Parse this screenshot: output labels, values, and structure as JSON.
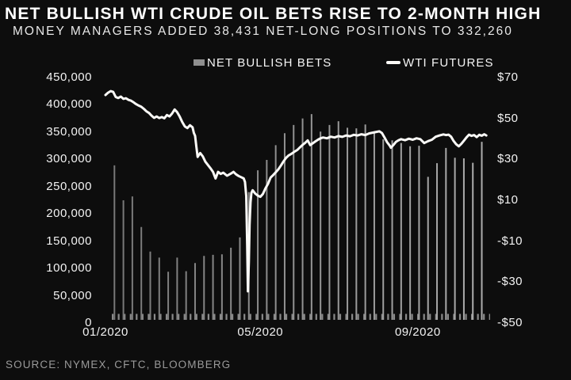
{
  "title": "NET BULLISH WTI CRUDE OIL BETS RISE TO 2-MONTH HIGH",
  "subtitle": "MONEY MANAGERS ADDED 38,431 NET-LONG POSITIONS TO 332,260",
  "source": "SOURCE: NYMEX, CFTC, BLOOMBERG",
  "key_stats": {
    "net_long_added": "38,431",
    "net_long_total": "332,260"
  },
  "legend": [
    {
      "label": "NET BULLISH BETS",
      "swatch": "bar",
      "color": "#8f8f8f"
    },
    {
      "label": "WTI FUTURES",
      "swatch": "line",
      "color": "#fbfaf7"
    }
  ],
  "colors": {
    "background": "#0d0d0d",
    "bar": "#8e8e8e",
    "line": "#fbfaf7",
    "title_text": "#ffffff",
    "subtitle_text": "#e8e8e8",
    "axis_text": "#f2f2f2",
    "source_text": "#9a9a9a",
    "baseline_dash": "#8a8a8a"
  },
  "chart_data": {
    "type": "combo-bar-line",
    "title": "NET BULLISH WTI CRUDE OIL BETS RISE TO 2-MONTH HIGH",
    "legend_position": "top",
    "grid": "off",
    "left_axis": {
      "series": "NET BULLISH BETS",
      "range": [
        0,
        450000
      ],
      "tick_labels": [
        "450,000",
        "400,000",
        "350,000",
        "300,000",
        "250,000",
        "200,000",
        "150,000",
        "100,000",
        "50,000",
        "0"
      ]
    },
    "right_axis": {
      "series": "WTI FUTURES",
      "range": [
        -50,
        70
      ],
      "tick_labels": [
        "$70",
        "$50",
        "$30",
        "$10",
        "-$10",
        "-$30",
        "-$50"
      ]
    },
    "x_axis": {
      "unit": "days since 2020-01-01",
      "range_days": [
        0,
        300
      ],
      "tick_labels": [
        "01/2020",
        "05/2020",
        "09/2020"
      ],
      "tick_label_days": [
        0,
        121,
        244
      ]
    },
    "bar_series": {
      "name": "NET BULLISH BETS",
      "type": "bar",
      "first_day": 7,
      "step_days": 7,
      "values": [
        289000,
        225000,
        232000,
        176000,
        131000,
        120000,
        94000,
        120000,
        95000,
        110000,
        123000,
        125000,
        126000,
        138000,
        157000,
        240000,
        280000,
        299000,
        326000,
        348000,
        363000,
        375000,
        383000,
        351000,
        363000,
        370000,
        358000,
        357000,
        364000,
        348000,
        337000,
        335000,
        330000,
        324000,
        325000,
        268000,
        293000,
        321000,
        303000,
        302000,
        293829,
        332260
      ]
    },
    "line_series": {
      "name": "WTI FUTURES",
      "type": "line",
      "points_day_price": [
        [
          0,
          61.5
        ],
        [
          2,
          62.6
        ],
        [
          4,
          63.4
        ],
        [
          6,
          63.0
        ],
        [
          8,
          60.5
        ],
        [
          10,
          60.0
        ],
        [
          12,
          60.7
        ],
        [
          14,
          59.6
        ],
        [
          16,
          59.9
        ],
        [
          18,
          59.1
        ],
        [
          20,
          58.7
        ],
        [
          22,
          57.9
        ],
        [
          24,
          57.0
        ],
        [
          26,
          56.3
        ],
        [
          28,
          55.7
        ],
        [
          30,
          54.7
        ],
        [
          32,
          53.5
        ],
        [
          34,
          52.7
        ],
        [
          36,
          51.4
        ],
        [
          38,
          50.3
        ],
        [
          40,
          51.0
        ],
        [
          42,
          50.2
        ],
        [
          44,
          50.7
        ],
        [
          46,
          50.1
        ],
        [
          48,
          51.7
        ],
        [
          50,
          51.0
        ],
        [
          52,
          52.4
        ],
        [
          54,
          54.4
        ],
        [
          56,
          53.1
        ],
        [
          58,
          50.9
        ],
        [
          60,
          48.3
        ],
        [
          62,
          46.1
        ],
        [
          64,
          45.3
        ],
        [
          66,
          46.7
        ],
        [
          68,
          45.7
        ],
        [
          69,
          43.0
        ],
        [
          70,
          41.5
        ],
        [
          71,
          36.2
        ],
        [
          72,
          31.2
        ],
        [
          74,
          33.1
        ],
        [
          76,
          31.5
        ],
        [
          78,
          28.9
        ],
        [
          80,
          27.3
        ],
        [
          82,
          25.7
        ],
        [
          84,
          23.9
        ],
        [
          86,
          20.7
        ],
        [
          88,
          23.9
        ],
        [
          90,
          22.9
        ],
        [
          92,
          23.5
        ],
        [
          95,
          22.0
        ],
        [
          98,
          23.1
        ],
        [
          100,
          23.9
        ],
        [
          102,
          22.7
        ],
        [
          104,
          21.9
        ],
        [
          106,
          21.3
        ],
        [
          108,
          20.7
        ],
        [
          109,
          19.0
        ],
        [
          110,
          12.0
        ],
        [
          110.7,
          -12.0
        ],
        [
          111.3,
          -34.5
        ],
        [
          112,
          -20.0
        ],
        [
          112.6,
          -2.0
        ],
        [
          113.3,
          9.0
        ],
        [
          114,
          13.6
        ],
        [
          115,
          14.9
        ],
        [
          117,
          13.3
        ],
        [
          119,
          12.3
        ],
        [
          121,
          11.7
        ],
        [
          123,
          13.1
        ],
        [
          125,
          15.9
        ],
        [
          127,
          18.1
        ],
        [
          129,
          21.1
        ],
        [
          131,
          22.3
        ],
        [
          133,
          23.7
        ],
        [
          135,
          25.1
        ],
        [
          137,
          26.9
        ],
        [
          139,
          28.9
        ],
        [
          141,
          30.7
        ],
        [
          143,
          31.9
        ],
        [
          145,
          32.6
        ],
        [
          147,
          33.5
        ],
        [
          150,
          34.7
        ],
        [
          152,
          35.9
        ],
        [
          154,
          37.1
        ],
        [
          156,
          38.1
        ],
        [
          158,
          39.3
        ],
        [
          160,
          37.0
        ],
        [
          162,
          37.9
        ],
        [
          164,
          38.8
        ],
        [
          166,
          39.6
        ],
        [
          168,
          40.3
        ],
        [
          170,
          40.7
        ],
        [
          173,
          40.3
        ],
        [
          176,
          41.1
        ],
        [
          179,
          40.7
        ],
        [
          182,
          41.4
        ],
        [
          185,
          41.0
        ],
        [
          188,
          41.7
        ],
        [
          191,
          41.3
        ],
        [
          194,
          42.0
        ],
        [
          197,
          41.7
        ],
        [
          200,
          42.3
        ],
        [
          203,
          41.9
        ],
        [
          206,
          42.7
        ],
        [
          209,
          43.1
        ],
        [
          212,
          43.5
        ],
        [
          214,
          43.7
        ],
        [
          216,
          42.9
        ],
        [
          218,
          40.7
        ],
        [
          220,
          38.4
        ],
        [
          222,
          36.8
        ],
        [
          223,
          35.7
        ],
        [
          225,
          37.1
        ],
        [
          227,
          38.6
        ],
        [
          229,
          39.4
        ],
        [
          231,
          39.9
        ],
        [
          234,
          39.4
        ],
        [
          237,
          40.1
        ],
        [
          240,
          39.6
        ],
        [
          243,
          40.3
        ],
        [
          246,
          39.9
        ],
        [
          249,
          38.0
        ],
        [
          252,
          38.9
        ],
        [
          255,
          39.6
        ],
        [
          258,
          41.1
        ],
        [
          261,
          41.7
        ],
        [
          264,
          42.2
        ],
        [
          266,
          41.9
        ],
        [
          268,
          42.1
        ],
        [
          270,
          41.1
        ],
        [
          272,
          39.0
        ],
        [
          274,
          37.4
        ],
        [
          276,
          36.4
        ],
        [
          278,
          37.6
        ],
        [
          280,
          39.1
        ],
        [
          282,
          40.7
        ],
        [
          284,
          42.1
        ],
        [
          286,
          41.5
        ],
        [
          288,
          41.9
        ],
        [
          290,
          40.9
        ],
        [
          292,
          42.0
        ],
        [
          294,
          41.6
        ],
        [
          296,
          42.3
        ],
        [
          297.5,
          41.7
        ]
      ]
    }
  }
}
